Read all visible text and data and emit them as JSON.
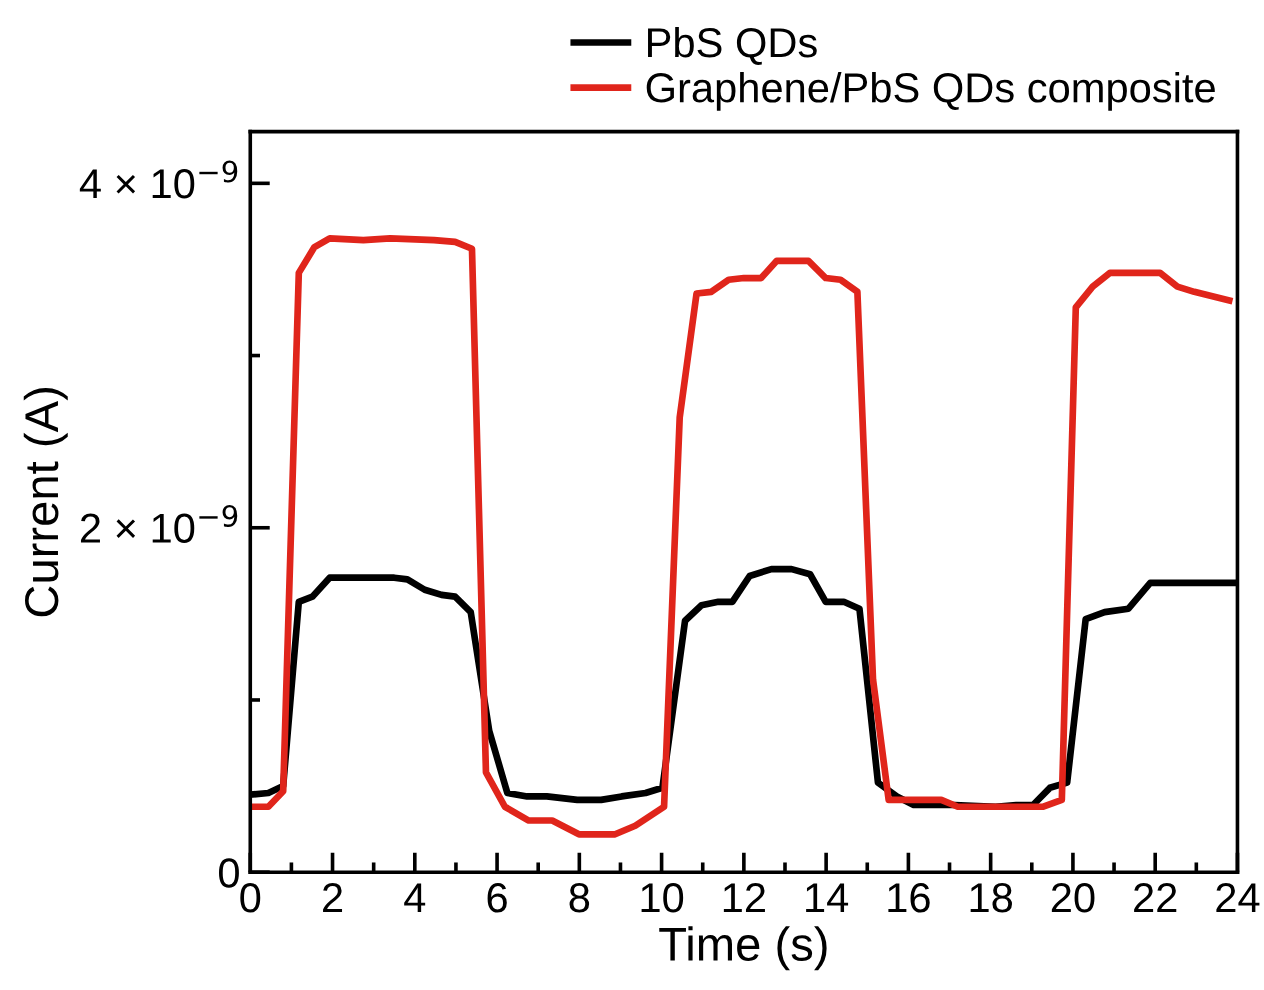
{
  "chart_data": {
    "type": "line",
    "xlabel": "Time (s)",
    "ylabel": "Current (A)",
    "xlim": [
      0,
      24
    ],
    "ylim": [
      0,
      4.3e-09
    ],
    "xticks": [
      0,
      {
        "value": 1,
        "label": null
      },
      2,
      {
        "value": 3,
        "label": null
      },
      4,
      {
        "value": 5,
        "label": null
      },
      6,
      {
        "value": 7,
        "label": null
      },
      8,
      {
        "value": 9,
        "label": null
      },
      10,
      {
        "value": 11,
        "label": null
      },
      12,
      {
        "value": 13,
        "label": null
      },
      14,
      {
        "value": 15,
        "label": null
      },
      16,
      {
        "value": 17,
        "label": null
      },
      18,
      {
        "value": 19,
        "label": null
      },
      20,
      {
        "value": 21,
        "label": null
      },
      22,
      {
        "value": 23,
        "label": null
      },
      24
    ],
    "yticks": [
      0,
      {
        "value": 1e-09,
        "label": null
      },
      {
        "value": 2e-09,
        "label": "2 × 10$^{−9}$"
      },
      {
        "value": 3e-09,
        "label": null
      },
      {
        "value": 4e-09,
        "label": "4 × 10$^{−9}$"
      }
    ],
    "legend": "top",
    "grid": false,
    "marker": "none",
    "line_style": "solid",
    "series": [
      {
        "name": "PbS QDs",
        "color": "#000000",
        "x": [
          0,
          0.44,
          0.8,
          1.18,
          1.51,
          1.93,
          3.5,
          3.82,
          4.24,
          4.65,
          4.98,
          5.36,
          5.81,
          6.25,
          6.73,
          7.21,
          7.95,
          8.53,
          9.03,
          9.61,
          10.02,
          10.57,
          10.97,
          11.38,
          11.72,
          12.14,
          12.67,
          13.16,
          13.61,
          13.99,
          14.43,
          14.81,
          15.26,
          15.72,
          16.13,
          17.13,
          18.12,
          18.62,
          19.03,
          19.44,
          19.86,
          20.31,
          20.77,
          21.35,
          21.88,
          24
        ],
        "values": [
          4.5e-10,
          4.6e-10,
          5e-10,
          1.57e-09,
          1.6e-09,
          1.71e-09,
          1.71e-09,
          1.7e-09,
          1.64e-09,
          1.61e-09,
          1.6e-09,
          1.51e-09,
          8.2e-10,
          4.6e-10,
          4.4e-10,
          4.4e-10,
          4.2e-10,
          4.2e-10,
          4.4e-10,
          4.6e-10,
          4.9e-10,
          1.46e-09,
          1.55e-09,
          1.57e-09,
          1.57e-09,
          1.72e-09,
          1.76e-09,
          1.76e-09,
          1.73e-09,
          1.57e-09,
          1.57e-09,
          1.53e-09,
          5.2e-10,
          4.4e-10,
          3.9e-10,
          3.9e-10,
          3.8e-10,
          3.9e-10,
          3.9e-10,
          4.9e-10,
          5.2e-10,
          1.47e-09,
          1.51e-09,
          1.53e-09,
          1.68e-09,
          1.68e-09
        ]
      },
      {
        "name": "Graphene/PbS QDs composite",
        "color": "#e0251b",
        "x": [
          0,
          0.44,
          0.8,
          1.18,
          1.56,
          1.93,
          2.75,
          3.4,
          4.47,
          4.98,
          5.39,
          5.73,
          6.19,
          6.77,
          7.34,
          7.99,
          8.87,
          9.36,
          10.06,
          10.44,
          10.85,
          11.21,
          11.63,
          12.0,
          12.42,
          12.8,
          13.57,
          13.99,
          14.35,
          14.76,
          15.14,
          15.52,
          16.8,
          17.2,
          18.2,
          19.28,
          19.73,
          20.07,
          20.48,
          20.9,
          22.12,
          22.54,
          22.95,
          23.8
        ],
        "values": [
          3.8e-10,
          3.8e-10,
          4.7e-10,
          3.48e-09,
          3.63e-09,
          3.68e-09,
          3.67e-09,
          3.68e-09,
          3.67e-09,
          3.66e-09,
          3.62e-09,
          5.8e-10,
          3.8e-10,
          3e-10,
          3e-10,
          2.2e-10,
          2.2e-10,
          2.7e-10,
          3.8e-10,
          2.64e-09,
          3.36e-09,
          3.37e-09,
          3.44e-09,
          3.45e-09,
          3.45e-09,
          3.55e-09,
          3.55e-09,
          3.45e-09,
          3.44e-09,
          3.37e-09,
          1.12e-09,
          4.2e-10,
          4.2e-10,
          3.8e-10,
          3.8e-10,
          3.8e-10,
          4.2e-10,
          3.28e-09,
          3.4e-09,
          3.48e-09,
          3.48e-09,
          3.4e-09,
          3.37e-09,
          3.32e-09
        ]
      }
    ]
  }
}
